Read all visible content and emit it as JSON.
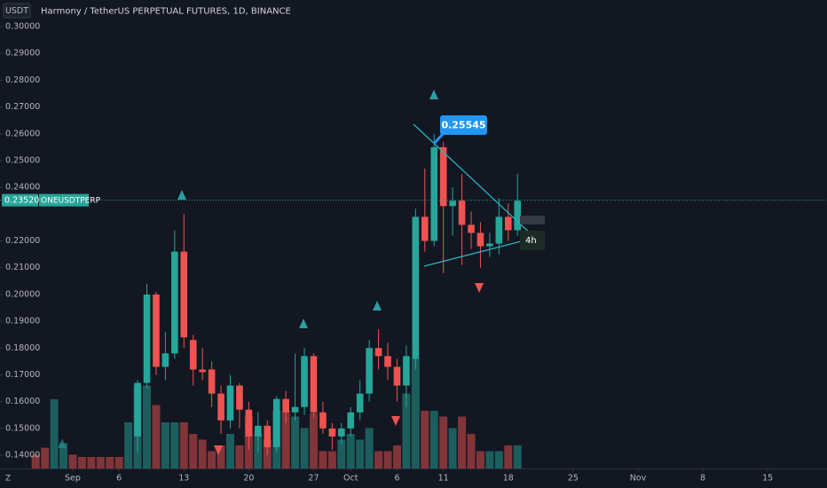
{
  "chart_data": {
    "type": "candlestick",
    "title": "Harmony / TetherUS PERPETUAL FUTURES, 1D, BINANCE",
    "currency": "USDT",
    "symbol": "ONEUSDTPERP",
    "last_price": {
      "value": 0.2352,
      "label": "0.23520"
    },
    "callout": 0.25545,
    "interval_label": "4h",
    "xlim": [
      -3.85,
      85.4
    ],
    "ylim": [
      0.13505,
      0.30994
    ],
    "yticks": [
      {
        "value": 0.14,
        "label": "0.14000"
      },
      {
        "value": 0.15,
        "label": "0.15000"
      },
      {
        "value": 0.16,
        "label": "0.16000"
      },
      {
        "value": 0.17,
        "label": "0.17000"
      },
      {
        "value": 0.18,
        "label": "0.18000"
      },
      {
        "value": 0.19,
        "label": "0.19000"
      },
      {
        "value": 0.2,
        "label": "0.20000"
      },
      {
        "value": 0.21,
        "label": "0.21000"
      },
      {
        "value": 0.22,
        "label": "0.22000"
      },
      {
        "value": 0.24,
        "label": "0.24000"
      },
      {
        "value": 0.25,
        "label": "0.25000"
      },
      {
        "value": 0.26,
        "label": "0.26000"
      },
      {
        "value": 0.27,
        "label": "0.27000"
      },
      {
        "value": 0.28,
        "label": "0.28000"
      },
      {
        "value": 0.29,
        "label": "0.29000"
      },
      {
        "value": 0.3,
        "label": "0.30000"
      }
    ],
    "xticks": [
      {
        "value": 4,
        "label": "Sep"
      },
      {
        "value": 9,
        "label": "6"
      },
      {
        "value": 16,
        "label": "13"
      },
      {
        "value": 23,
        "label": "20"
      },
      {
        "value": 30,
        "label": "27"
      },
      {
        "value": 34,
        "label": "Oct"
      },
      {
        "value": 39,
        "label": "6"
      },
      {
        "value": 44,
        "label": "11"
      },
      {
        "value": 51,
        "label": "18"
      },
      {
        "value": 58,
        "label": "25"
      },
      {
        "value": 65,
        "label": "Nov"
      },
      {
        "value": 72,
        "label": "8"
      },
      {
        "value": 79,
        "label": "15"
      }
    ],
    "up_color": "#26a69a",
    "down_color": "#ef5350",
    "candles": {
      "x": [
        11,
        12,
        13,
        14,
        15,
        16,
        17,
        18,
        19,
        20,
        21,
        22,
        23,
        24,
        25,
        26,
        27,
        28,
        29,
        30,
        31,
        32,
        33,
        34,
        35,
        36,
        37,
        38,
        39,
        40,
        41,
        42,
        43,
        44,
        45,
        46,
        47,
        48,
        49,
        50,
        51,
        52
      ],
      "open": [
        0.147,
        0.167,
        0.2,
        0.173,
        0.178,
        0.216,
        0.183,
        0.172,
        0.172,
        0.163,
        0.153,
        0.166,
        0.157,
        0.147,
        0.151,
        0.143,
        0.161,
        0.156,
        0.158,
        0.177,
        0.156,
        0.15,
        0.147,
        0.15,
        0.156,
        0.163,
        0.18,
        0.177,
        0.173,
        0.166,
        0.176,
        0.229,
        0.22,
        0.255,
        0.233,
        0.235,
        0.226,
        0.223,
        0.218,
        0.219,
        0.229,
        0.224
      ],
      "high": [
        0.168,
        0.204,
        0.201,
        0.186,
        0.224,
        0.23,
        0.185,
        0.18,
        0.175,
        0.166,
        0.17,
        0.167,
        0.16,
        0.156,
        0.153,
        0.162,
        0.164,
        0.178,
        0.18,
        0.178,
        0.16,
        0.152,
        0.152,
        0.158,
        0.168,
        0.183,
        0.187,
        0.182,
        0.176,
        0.181,
        0.232,
        0.247,
        0.26,
        0.257,
        0.24,
        0.245,
        0.231,
        0.227,
        0.223,
        0.236,
        0.234,
        0.245
      ],
      "low": [
        0.141,
        0.165,
        0.17,
        0.168,
        0.176,
        0.18,
        0.166,
        0.168,
        0.158,
        0.148,
        0.15,
        0.15,
        0.142,
        0.141,
        0.14,
        0.141,
        0.152,
        0.153,
        0.155,
        0.154,
        0.148,
        0.142,
        0.144,
        0.147,
        0.153,
        0.16,
        0.172,
        0.168,
        0.16,
        0.158,
        0.172,
        0.216,
        0.218,
        0.208,
        0.222,
        0.211,
        0.217,
        0.21,
        0.214,
        0.215,
        0.22,
        0.222
      ],
      "close": [
        0.167,
        0.2,
        0.173,
        0.178,
        0.216,
        0.184,
        0.172,
        0.171,
        0.163,
        0.153,
        0.166,
        0.157,
        0.147,
        0.151,
        0.143,
        0.161,
        0.156,
        0.158,
        0.177,
        0.156,
        0.15,
        0.147,
        0.15,
        0.156,
        0.163,
        0.18,
        0.177,
        0.173,
        0.166,
        0.177,
        0.229,
        0.22,
        0.255,
        0.233,
        0.235,
        0.226,
        0.223,
        0.218,
        0.219,
        0.229,
        0.224,
        0.235
      ]
    },
    "volume": {
      "ylim": [
        0,
        100
      ],
      "x": [
        0,
        1,
        2,
        3,
        4,
        5,
        6,
        7,
        8,
        9,
        10,
        11,
        12,
        13,
        14,
        15,
        16,
        17,
        18,
        19,
        20,
        21,
        22,
        23,
        24,
        25,
        26,
        27,
        28,
        29,
        30,
        31,
        32,
        33,
        34,
        35,
        36,
        37,
        38,
        39,
        40,
        41,
        42,
        43,
        44,
        45,
        46,
        47,
        48,
        49,
        50,
        51,
        52
      ],
      "values": [
        12,
        18,
        60,
        22,
        12,
        10,
        10,
        10,
        10,
        10,
        40,
        72,
        72,
        55,
        40,
        40,
        40,
        30,
        25,
        15,
        20,
        30,
        20,
        45,
        30,
        25,
        50,
        50,
        45,
        35,
        48,
        15,
        15,
        25,
        30,
        25,
        35,
        15,
        15,
        20,
        65,
        96,
        50,
        50,
        45,
        35,
        45,
        30,
        15,
        15,
        15,
        20,
        20
      ],
      "colors": [
        "#ef535080",
        "#ef535080",
        "#26a69a80",
        "#26a69a80",
        "#ef535080",
        "#ef535080",
        "#ef535080",
        "#ef535080",
        "#ef535080",
        "#ef535080",
        "#26a69a80",
        "#26a69a80",
        "#26a69a80",
        "#ef535080",
        "#26a69a80",
        "#26a69a80",
        "#ef535080",
        "#ef535080",
        "#ef535080",
        "#ef535080",
        "#ef535080",
        "#26a69a80",
        "#ef535080",
        "#ef535080",
        "#26a69a80",
        "#ef535080",
        "#26a69a80",
        "#ef535080",
        "#26a69a80",
        "#26a69a80",
        "#ef535080",
        "#ef535080",
        "#ef535080",
        "#26a69a80",
        "#26a69a80",
        "#26a69a80",
        "#26a69a80",
        "#ef535080",
        "#ef535080",
        "#ef535080",
        "#26a69a80",
        "#26a69a80",
        "#ef535080",
        "#26a69a80",
        "#ef535080",
        "#26a69a80",
        "#ef535080",
        "#ef535080",
        "#ef535080",
        "#26a69a80",
        "#26a69a80",
        "#ef535080",
        "#26a69a80"
      ]
    }
  }
}
